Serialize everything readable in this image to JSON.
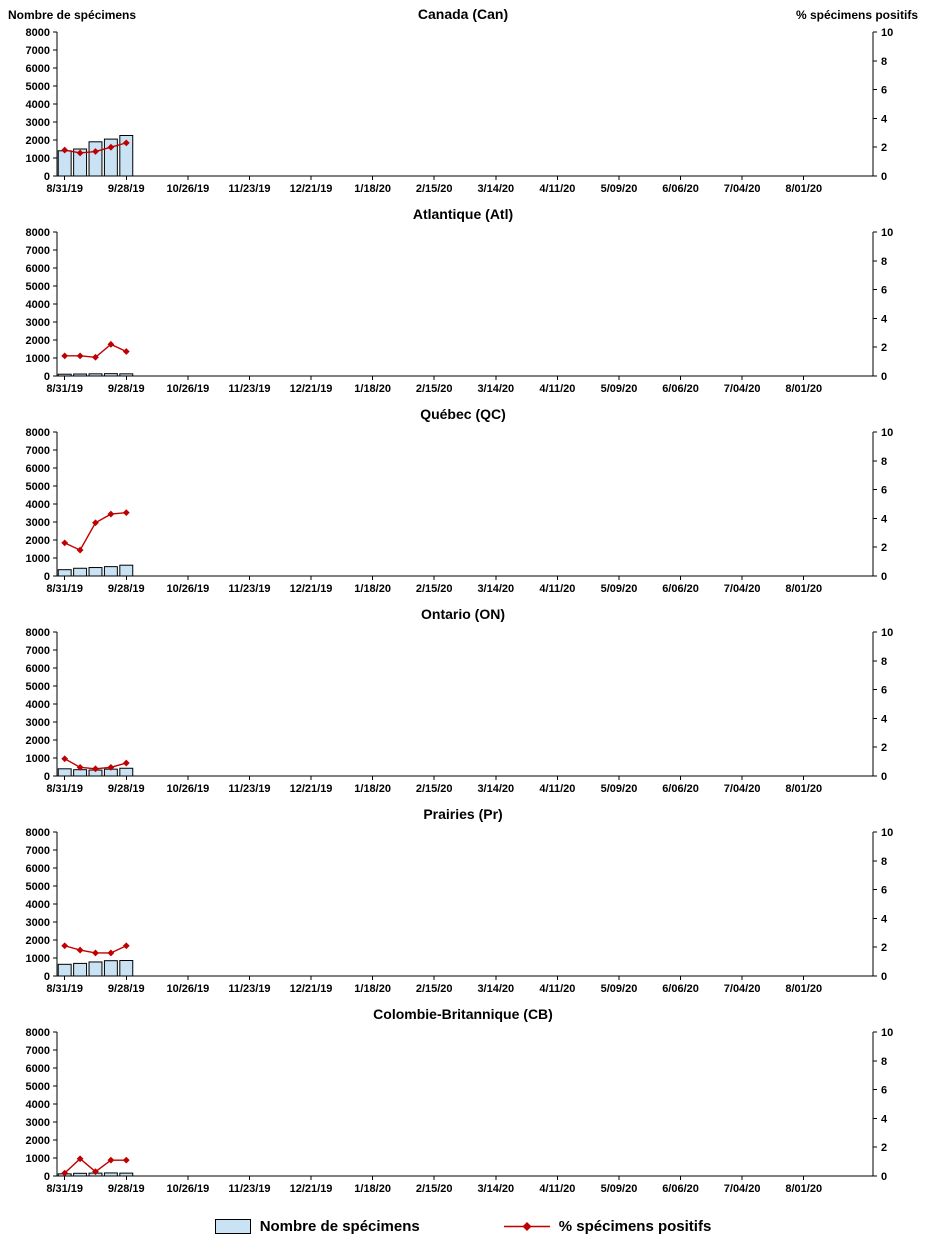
{
  "page": {
    "left_axis_label": "Nombre de spécimens",
    "right_axis_label": "% spécimens positifs"
  },
  "legend": {
    "bars_label": "Nombre de spécimens",
    "line_label": "% spécimens positifs"
  },
  "colors": {
    "bar_fill": "#c9e3f5",
    "bar_border": "#000000",
    "line": "#c00000",
    "axis": "#000000",
    "text": "#000000"
  },
  "chart_data": [
    {
      "type": "bar+line",
      "title": "Canada (Can)",
      "x_tick_labels": [
        "8/31/19",
        "9/28/19",
        "10/26/19",
        "11/23/19",
        "12/21/19",
        "1/18/20",
        "2/15/20",
        "3/14/20",
        "4/11/20",
        "5/09/20",
        "6/06/20",
        "7/04/20",
        "8/01/20"
      ],
      "weeks_total": 53,
      "grid": false,
      "left_axis": {
        "label": "Nombre de spécimens",
        "lim": [
          0,
          8000
        ],
        "tick_step": 1000
      },
      "right_axis": {
        "label": "% spécimens positifs",
        "lim": [
          0,
          10
        ],
        "tick_step": 2
      },
      "series": [
        {
          "name": "Nombre de spécimens",
          "type": "bar",
          "axis": "left",
          "x_weeks": [
            0,
            1,
            2,
            3,
            4
          ],
          "values": [
            1400,
            1500,
            1900,
            2050,
            2250
          ]
        },
        {
          "name": "% spécimens positifs",
          "type": "line",
          "axis": "right",
          "x_weeks": [
            0,
            1,
            2,
            3,
            4
          ],
          "values": [
            1.8,
            1.6,
            1.7,
            2.0,
            2.3
          ]
        }
      ]
    },
    {
      "type": "bar+line",
      "title": "Atlantique (Atl)",
      "x_tick_labels": [
        "8/31/19",
        "9/28/19",
        "10/26/19",
        "11/23/19",
        "12/21/19",
        "1/18/20",
        "2/15/20",
        "3/14/20",
        "4/11/20",
        "5/09/20",
        "6/06/20",
        "7/04/20",
        "8/01/20"
      ],
      "weeks_total": 53,
      "grid": false,
      "left_axis": {
        "label": "Nombre de spécimens",
        "lim": [
          0,
          8000
        ],
        "tick_step": 1000
      },
      "right_axis": {
        "label": "% spécimens positifs",
        "lim": [
          0,
          10
        ],
        "tick_step": 2
      },
      "series": [
        {
          "name": "Nombre de spécimens",
          "type": "bar",
          "axis": "left",
          "x_weeks": [
            0,
            1,
            2,
            3,
            4
          ],
          "values": [
            100,
            110,
            120,
            130,
            120
          ]
        },
        {
          "name": "% spécimens positifs",
          "type": "line",
          "axis": "right",
          "x_weeks": [
            0,
            1,
            2,
            3,
            4
          ],
          "values": [
            1.4,
            1.4,
            1.3,
            2.2,
            1.7
          ]
        }
      ]
    },
    {
      "type": "bar+line",
      "title": "Québec (QC)",
      "x_tick_labels": [
        "8/31/19",
        "9/28/19",
        "10/26/19",
        "11/23/19",
        "12/21/19",
        "1/18/20",
        "2/15/20",
        "3/14/20",
        "4/11/20",
        "5/09/20",
        "6/06/20",
        "7/04/20",
        "8/01/20"
      ],
      "weeks_total": 53,
      "grid": false,
      "left_axis": {
        "label": "Nombre de spécimens",
        "lim": [
          0,
          8000
        ],
        "tick_step": 1000
      },
      "right_axis": {
        "label": "% spécimens positifs",
        "lim": [
          0,
          10
        ],
        "tick_step": 2
      },
      "series": [
        {
          "name": "Nombre de spécimens",
          "type": "bar",
          "axis": "left",
          "x_weeks": [
            0,
            1,
            2,
            3,
            4
          ],
          "values": [
            350,
            430,
            470,
            520,
            600
          ]
        },
        {
          "name": "% spécimens positifs",
          "type": "line",
          "axis": "right",
          "x_weeks": [
            0,
            1,
            2,
            3,
            4
          ],
          "values": [
            2.3,
            1.8,
            3.7,
            4.3,
            4.4
          ]
        }
      ]
    },
    {
      "type": "bar+line",
      "title": "Ontario (ON)",
      "x_tick_labels": [
        "8/31/19",
        "9/28/19",
        "10/26/19",
        "11/23/19",
        "12/21/19",
        "1/18/20",
        "2/15/20",
        "3/14/20",
        "4/11/20",
        "5/09/20",
        "6/06/20",
        "7/04/20",
        "8/01/20"
      ],
      "weeks_total": 53,
      "grid": false,
      "left_axis": {
        "label": "Nombre de spécimens",
        "lim": [
          0,
          8000
        ],
        "tick_step": 1000
      },
      "right_axis": {
        "label": "% spécimens positifs",
        "lim": [
          0,
          10
        ],
        "tick_step": 2
      },
      "series": [
        {
          "name": "Nombre de spécimens",
          "type": "bar",
          "axis": "left",
          "x_weeks": [
            0,
            1,
            2,
            3,
            4
          ],
          "values": [
            400,
            350,
            330,
            380,
            430
          ]
        },
        {
          "name": "% spécimens positifs",
          "type": "line",
          "axis": "right",
          "x_weeks": [
            0,
            1,
            2,
            3,
            4
          ],
          "values": [
            1.2,
            0.6,
            0.5,
            0.6,
            0.9
          ]
        }
      ]
    },
    {
      "type": "bar+line",
      "title": "Prairies (Pr)",
      "x_tick_labels": [
        "8/31/19",
        "9/28/19",
        "10/26/19",
        "11/23/19",
        "12/21/19",
        "1/18/20",
        "2/15/20",
        "3/14/20",
        "4/11/20",
        "5/09/20",
        "6/06/20",
        "7/04/20",
        "8/01/20"
      ],
      "weeks_total": 53,
      "grid": false,
      "left_axis": {
        "label": "Nombre de spécimens",
        "lim": [
          0,
          8000
        ],
        "tick_step": 1000
      },
      "right_axis": {
        "label": "% spécimens positifs",
        "lim": [
          0,
          10
        ],
        "tick_step": 2
      },
      "series": [
        {
          "name": "Nombre de spécimens",
          "type": "bar",
          "axis": "left",
          "x_weeks": [
            0,
            1,
            2,
            3,
            4
          ],
          "values": [
            650,
            700,
            780,
            850,
            860
          ]
        },
        {
          "name": "% spécimens positifs",
          "type": "line",
          "axis": "right",
          "x_weeks": [
            0,
            1,
            2,
            3,
            4
          ],
          "values": [
            2.1,
            1.8,
            1.6,
            1.6,
            2.1
          ]
        }
      ]
    },
    {
      "type": "bar+line",
      "title": "Colombie-Britannique (CB)",
      "x_tick_labels": [
        "8/31/19",
        "9/28/19",
        "10/26/19",
        "11/23/19",
        "12/21/19",
        "1/18/20",
        "2/15/20",
        "3/14/20",
        "4/11/20",
        "5/09/20",
        "6/06/20",
        "7/04/20",
        "8/01/20"
      ],
      "weeks_total": 53,
      "grid": false,
      "left_axis": {
        "label": "Nombre de spécimens",
        "lim": [
          0,
          8000
        ],
        "tick_step": 1000
      },
      "right_axis": {
        "label": "% spécimens positifs",
        "lim": [
          0,
          10
        ],
        "tick_step": 2
      },
      "series": [
        {
          "name": "Nombre de spécimens",
          "type": "bar",
          "axis": "left",
          "x_weeks": [
            0,
            1,
            2,
            3,
            4
          ],
          "values": [
            120,
            150,
            160,
            170,
            160
          ]
        },
        {
          "name": "% spécimens positifs",
          "type": "line",
          "axis": "right",
          "x_weeks": [
            0,
            1,
            2,
            3,
            4
          ],
          "values": [
            0.2,
            1.2,
            0.3,
            1.1,
            1.1
          ]
        }
      ]
    }
  ]
}
